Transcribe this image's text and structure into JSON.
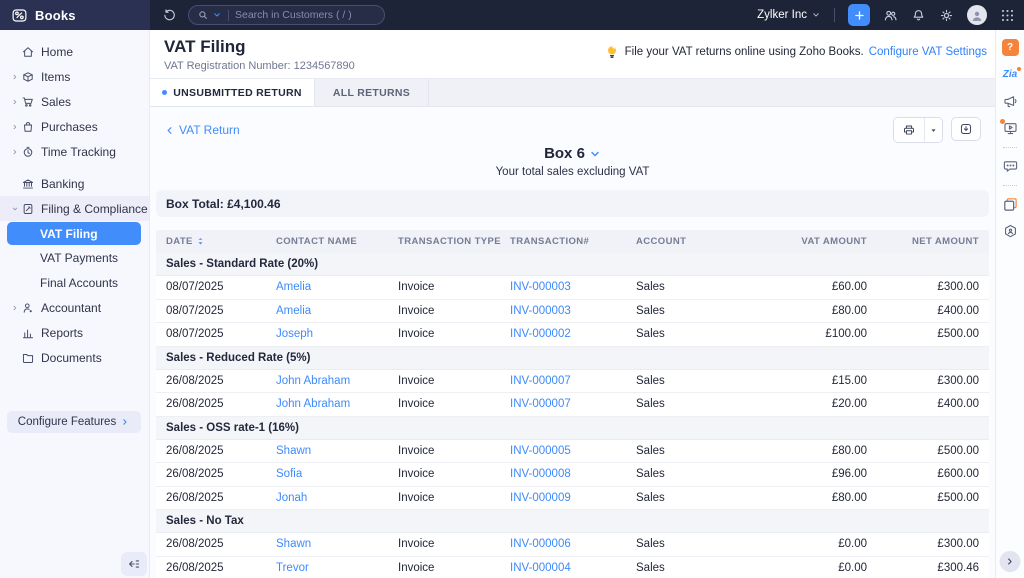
{
  "topbar": {
    "app_name": "Books",
    "search_placeholder": "Search in Customers ( / )",
    "org_name": "Zylker Inc",
    "icons": [
      "books-logo",
      "history-icon",
      "search-icon",
      "chevron-down-icon",
      "plus-icon",
      "users-icon",
      "bell-icon",
      "gear-icon",
      "user-avatar-icon",
      "apps-grid-icon"
    ]
  },
  "sidebar": {
    "items": [
      {
        "label": "Home",
        "icon": "home-icon"
      },
      {
        "label": "Items",
        "icon": "items-icon",
        "chevron": "right"
      },
      {
        "label": "Sales",
        "icon": "sales-icon",
        "chevron": "right"
      },
      {
        "label": "Purchases",
        "icon": "purchases-icon",
        "chevron": "right"
      },
      {
        "label": "Time Tracking",
        "icon": "time-icon",
        "chevron": "right",
        "gap": true
      },
      {
        "label": "Banking",
        "icon": "banking-icon"
      },
      {
        "label": "Filing & Compliance",
        "icon": "filing-icon",
        "chevron": "down",
        "highlight": true
      },
      {
        "label": "VAT Filing",
        "sub": true,
        "active": true
      },
      {
        "label": "VAT Payments",
        "sub": true
      },
      {
        "label": "Final Accounts",
        "sub": true
      },
      {
        "label": "Accountant",
        "icon": "accountant-icon",
        "chevron": "right"
      },
      {
        "label": "Reports",
        "icon": "reports-icon"
      },
      {
        "label": "Documents",
        "icon": "documents-icon"
      }
    ],
    "configure_label": "Configure Features"
  },
  "header": {
    "title": "VAT Filing",
    "subtitle": "VAT Registration Number: 1234567890",
    "tip_text": "File your VAT returns online using Zoho Books.",
    "tip_link": "Configure VAT Settings"
  },
  "tabs": [
    {
      "label": "UNSUBMITTED RETURN",
      "active": true
    },
    {
      "label": "ALL RETURNS",
      "active": false
    }
  ],
  "return_view": {
    "back_link": "VAT Return",
    "box_label": "Box 6",
    "box_description": "Your total sales excluding VAT",
    "box_total": "Box Total: £4,100.46"
  },
  "table": {
    "columns": [
      "DATE",
      "CONTACT NAME",
      "TRANSACTION TYPE",
      "TRANSACTION#",
      "ACCOUNT",
      "VAT AMOUNT",
      "NET AMOUNT"
    ],
    "sections": [
      {
        "title": "Sales - Standard Rate (20%)",
        "rows": [
          {
            "date": "08/07/2025",
            "contact": "Amelia",
            "type": "Invoice",
            "number": "INV-000003",
            "account": "Sales",
            "vat": "£60.00",
            "net": "£300.00"
          },
          {
            "date": "08/07/2025",
            "contact": "Amelia",
            "type": "Invoice",
            "number": "INV-000003",
            "account": "Sales",
            "vat": "£80.00",
            "net": "£400.00"
          },
          {
            "date": "08/07/2025",
            "contact": "Joseph",
            "type": "Invoice",
            "number": "INV-000002",
            "account": "Sales",
            "vat": "£100.00",
            "net": "£500.00"
          }
        ]
      },
      {
        "title": "Sales - Reduced Rate (5%)",
        "rows": [
          {
            "date": "26/08/2025",
            "contact": "John Abraham",
            "type": "Invoice",
            "number": "INV-000007",
            "account": "Sales",
            "vat": "£15.00",
            "net": "£300.00"
          },
          {
            "date": "26/08/2025",
            "contact": "John Abraham",
            "type": "Invoice",
            "number": "INV-000007",
            "account": "Sales",
            "vat": "£20.00",
            "net": "£400.00"
          }
        ]
      },
      {
        "title": "Sales - OSS rate-1 (16%)",
        "rows": [
          {
            "date": "26/08/2025",
            "contact": "Shawn",
            "type": "Invoice",
            "number": "INV-000005",
            "account": "Sales",
            "vat": "£80.00",
            "net": "£500.00"
          },
          {
            "date": "26/08/2025",
            "contact": "Sofia",
            "type": "Invoice",
            "number": "INV-000008",
            "account": "Sales",
            "vat": "£96.00",
            "net": "£600.00"
          },
          {
            "date": "26/08/2025",
            "contact": "Jonah",
            "type": "Invoice",
            "number": "INV-000009",
            "account": "Sales",
            "vat": "£80.00",
            "net": "£500.00"
          }
        ]
      },
      {
        "title": "Sales - No Tax",
        "rows": [
          {
            "date": "26/08/2025",
            "contact": "Shawn",
            "type": "Invoice",
            "number": "INV-000006",
            "account": "Sales",
            "vat": "£0.00",
            "net": "£300.00"
          },
          {
            "date": "26/08/2025",
            "contact": "Trevor",
            "type": "Invoice",
            "number": "INV-000004",
            "account": "Sales",
            "vat": "£0.00",
            "net": "£300.46"
          }
        ]
      }
    ]
  },
  "rail": {
    "items": [
      {
        "name": "help-icon"
      },
      {
        "name": "zia-icon"
      },
      {
        "name": "announcements-icon"
      },
      {
        "name": "demo-video-icon",
        "badge": true
      },
      {
        "type": "divider"
      },
      {
        "name": "chat-icon"
      },
      {
        "type": "divider"
      },
      {
        "name": "gallery-icon"
      },
      {
        "name": "community-icon"
      }
    ]
  },
  "colors": {
    "accent_blue": "#408dfb",
    "topbar_bg": "#1e2438",
    "topbar_left_bg": "#2b3152",
    "sidebar_bg": "#f7f8fd",
    "help_orange": "#f6833c",
    "link_blue": "#3d8bfb",
    "section_row_bg": "#f3f5f9",
    "bulb_yellow": "#fcbf2d"
  }
}
